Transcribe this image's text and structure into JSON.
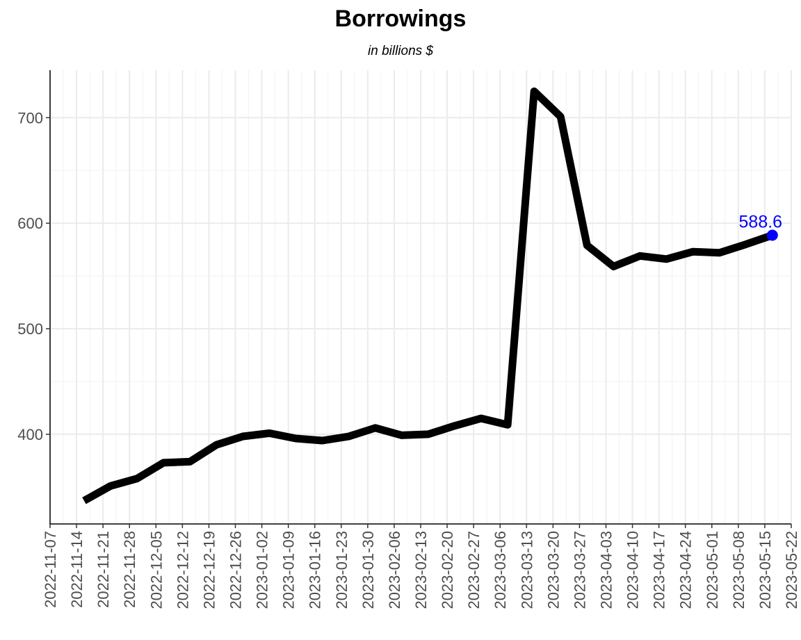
{
  "chart_data": {
    "type": "line",
    "title": "Borrowings",
    "subtitle": "in billions $",
    "xlabel": "",
    "ylabel": "",
    "x_ticks": [
      "2022-11-07",
      "2022-11-14",
      "2022-11-21",
      "2022-11-28",
      "2022-12-05",
      "2022-12-12",
      "2022-12-19",
      "2022-12-26",
      "2023-01-02",
      "2023-01-09",
      "2023-01-16",
      "2023-01-23",
      "2023-01-30",
      "2023-02-06",
      "2023-02-13",
      "2023-02-20",
      "2023-02-27",
      "2023-03-06",
      "2023-03-13",
      "2023-03-20",
      "2023-03-27",
      "2023-04-03",
      "2023-04-10",
      "2023-04-17",
      "2023-04-24",
      "2023-05-01",
      "2023-05-08",
      "2023-05-15",
      "2023-05-22"
    ],
    "y_ticks": [
      400,
      500,
      600,
      700
    ],
    "xlim": [
      "2022-11-07",
      "2023-05-22"
    ],
    "ylim": [
      315,
      745
    ],
    "grid": true,
    "series": [
      {
        "color": "#000000",
        "points": [
          {
            "x": "2022-11-16",
            "y": 337
          },
          {
            "x": "2022-11-23",
            "y": 351
          },
          {
            "x": "2022-11-30",
            "y": 358
          },
          {
            "x": "2022-12-07",
            "y": 373
          },
          {
            "x": "2022-12-14",
            "y": 374
          },
          {
            "x": "2022-12-21",
            "y": 390
          },
          {
            "x": "2022-12-28",
            "y": 398
          },
          {
            "x": "2023-01-04",
            "y": 401
          },
          {
            "x": "2023-01-11",
            "y": 396
          },
          {
            "x": "2023-01-18",
            "y": 394
          },
          {
            "x": "2023-01-25",
            "y": 398
          },
          {
            "x": "2023-02-01",
            "y": 406
          },
          {
            "x": "2023-02-08",
            "y": 399
          },
          {
            "x": "2023-02-15",
            "y": 400
          },
          {
            "x": "2023-02-22",
            "y": 408
          },
          {
            "x": "2023-03-01",
            "y": 415
          },
          {
            "x": "2023-03-08",
            "y": 409
          },
          {
            "x": "2023-03-15",
            "y": 725
          },
          {
            "x": "2023-03-22",
            "y": 701
          },
          {
            "x": "2023-03-29",
            "y": 579
          },
          {
            "x": "2023-04-05",
            "y": 559
          },
          {
            "x": "2023-04-12",
            "y": 569
          },
          {
            "x": "2023-04-19",
            "y": 566
          },
          {
            "x": "2023-04-26",
            "y": 573
          },
          {
            "x": "2023-05-03",
            "y": 572
          },
          {
            "x": "2023-05-10",
            "y": 580
          },
          {
            "x": "2023-05-17",
            "y": 588.6
          }
        ]
      }
    ],
    "last_point": {
      "x": "2023-05-17",
      "y": 588.6,
      "label": "588.6",
      "color": "#0000ff"
    }
  }
}
